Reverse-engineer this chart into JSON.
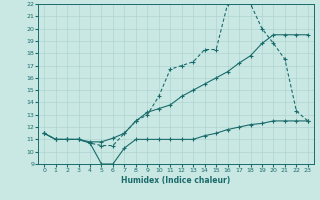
{
  "xlabel": "Humidex (Indice chaleur)",
  "ylabel": "",
  "xlim": [
    -0.5,
    23.5
  ],
  "ylim": [
    9,
    22
  ],
  "xticks": [
    0,
    1,
    2,
    3,
    4,
    5,
    6,
    7,
    8,
    9,
    10,
    11,
    12,
    13,
    14,
    15,
    16,
    17,
    18,
    19,
    20,
    21,
    22,
    23
  ],
  "yticks": [
    9,
    10,
    11,
    12,
    13,
    14,
    15,
    16,
    17,
    18,
    19,
    20,
    21,
    22
  ],
  "bg_color": "#c9e8e4",
  "line_color": "#1a6b6b",
  "grid_color": "#b0d4d0",
  "line1_x": [
    0,
    1,
    2,
    3,
    4,
    5,
    6,
    7,
    8,
    9,
    10,
    11,
    12,
    13,
    14,
    15,
    16,
    17,
    18,
    19,
    20,
    21,
    22,
    23
  ],
  "line1_y": [
    11.5,
    11.0,
    11.0,
    11.0,
    10.8,
    10.8,
    11.1,
    11.5,
    12.5,
    13.2,
    13.5,
    13.8,
    14.5,
    15.0,
    15.5,
    16.0,
    16.5,
    17.2,
    17.8,
    18.8,
    19.5,
    19.5,
    19.5,
    19.5
  ],
  "line2_x": [
    0,
    1,
    2,
    3,
    4,
    5,
    6,
    7,
    8,
    9,
    10,
    11,
    12,
    13,
    14,
    15,
    16,
    17,
    18,
    19,
    20,
    21,
    22,
    23
  ],
  "line2_y": [
    11.5,
    11.0,
    11.0,
    11.0,
    10.7,
    9.0,
    9.0,
    10.3,
    11.0,
    11.0,
    11.0,
    11.0,
    11.0,
    11.0,
    11.3,
    11.5,
    11.8,
    12.0,
    12.2,
    12.3,
    12.5,
    12.5,
    12.5,
    12.5
  ],
  "line3_x": [
    0,
    1,
    2,
    3,
    4,
    5,
    6,
    7,
    8,
    9,
    10,
    11,
    12,
    13,
    14,
    15,
    16,
    17,
    18,
    19,
    20,
    21,
    22,
    23
  ],
  "line3_y": [
    11.5,
    11.0,
    11.0,
    11.0,
    10.7,
    10.5,
    10.5,
    11.5,
    12.5,
    13.0,
    14.5,
    16.7,
    17.0,
    17.3,
    18.3,
    18.3,
    22.0,
    22.3,
    22.0,
    20.0,
    18.8,
    17.5,
    13.3,
    12.5
  ]
}
